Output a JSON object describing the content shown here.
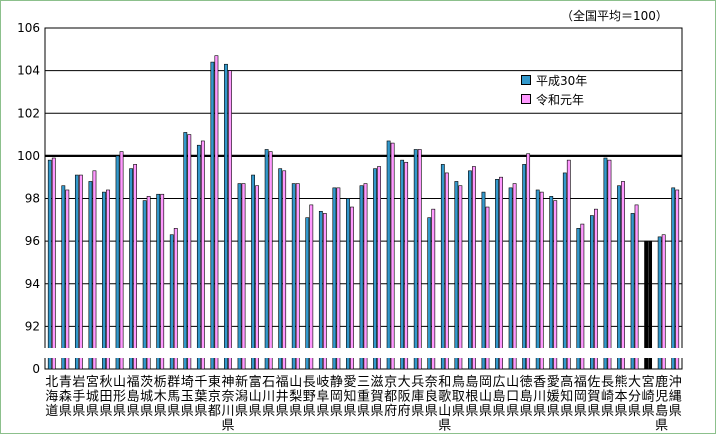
{
  "chart_data": {
    "type": "bar",
    "title": "",
    "note": "（全国平均＝100）",
    "xlabel": "",
    "ylabel": "",
    "ylim": [
      90,
      106
    ],
    "y_ticks": [
      "92",
      "94",
      "96",
      "98",
      "100",
      "102",
      "104",
      "106"
    ],
    "y_zero_label": "0",
    "axis_break": true,
    "reference_line": 100,
    "grid": true,
    "legend_position": "right",
    "categories": [
      "北海道",
      "青森県",
      "岩手県",
      "宮城県",
      "秋田県",
      "山形県",
      "福島県",
      "茨城県",
      "栃木県",
      "群馬県",
      "埼玉県",
      "千葉県",
      "東京都",
      "神奈川県",
      "新潟県",
      "富山県",
      "石川県",
      "福井県",
      "山梨県",
      "長野県",
      "岐阜県",
      "静岡県",
      "愛知県",
      "三重県",
      "滋賀県",
      "京都府",
      "大阪府",
      "兵庫県",
      "奈良県",
      "和歌山県",
      "鳥取県",
      "島根県",
      "岡山県",
      "広島県",
      "山口県",
      "徳島県",
      "香川県",
      "愛媛県",
      "高知県",
      "福岡県",
      "佐賀県",
      "長崎県",
      "熊本県",
      "大分県",
      "宮崎県",
      "鹿児島県",
      "沖縄県"
    ],
    "series": [
      {
        "name": "平成30年",
        "color": "#3399cc",
        "values": [
          99.8,
          98.6,
          99.1,
          98.8,
          98.3,
          100.0,
          99.4,
          97.9,
          98.2,
          96.3,
          101.1,
          100.5,
          104.4,
          104.3,
          98.7,
          99.1,
          100.3,
          99.4,
          98.7,
          97.1,
          97.4,
          98.5,
          98.0,
          98.6,
          99.4,
          100.7,
          99.8,
          100.3,
          97.1,
          99.6,
          98.8,
          99.3,
          98.3,
          98.9,
          98.5,
          99.6,
          98.4,
          98.1,
          99.2,
          96.6,
          97.2,
          99.9,
          98.6,
          97.3,
          96.0,
          96.2,
          98.5
        ]
      },
      {
        "name": "令和元年",
        "color": "#ff99ff",
        "values": [
          99.9,
          98.4,
          99.1,
          99.3,
          98.4,
          100.2,
          99.6,
          98.1,
          98.2,
          96.6,
          101.0,
          100.7,
          104.7,
          104.0,
          98.7,
          98.6,
          100.2,
          99.3,
          98.7,
          97.7,
          97.3,
          98.5,
          97.6,
          98.7,
          99.5,
          100.6,
          99.7,
          100.3,
          97.5,
          99.2,
          98.6,
          99.5,
          97.6,
          99.0,
          98.7,
          100.1,
          98.3,
          97.9,
          99.8,
          96.8,
          97.5,
          99.8,
          98.8,
          97.7,
          96.0,
          96.3,
          98.4
        ]
      }
    ],
    "highlight_category": "宮崎県"
  }
}
